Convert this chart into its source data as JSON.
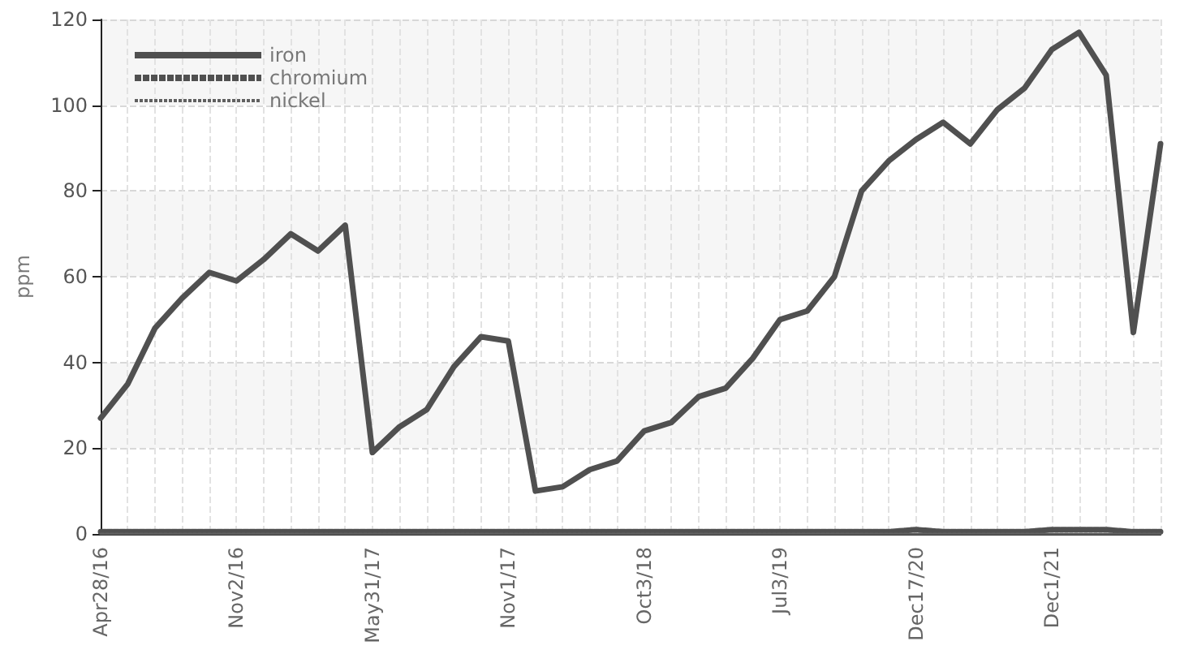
{
  "chart_data": {
    "type": "line",
    "ylabel": "ppm",
    "categories": [
      "Apr28/16",
      null,
      null,
      null,
      null,
      "Nov2/16",
      null,
      null,
      null,
      null,
      "May31/17",
      null,
      null,
      null,
      null,
      "Nov1/17",
      null,
      null,
      null,
      null,
      "Oct3/18",
      null,
      null,
      null,
      null,
      "Jul3/19",
      null,
      null,
      null,
      null,
      "Dec17/20",
      null,
      null,
      null,
      null,
      "Dec1/21",
      null,
      null,
      null,
      null
    ],
    "series": [
      {
        "name": "iron",
        "color": "#505050",
        "line_style": "solid",
        "values": [
          27,
          35,
          48,
          55,
          61,
          59,
          64,
          70,
          66,
          72,
          19,
          25,
          29,
          39,
          46,
          45,
          10,
          11,
          15,
          17,
          24,
          26,
          32,
          34,
          41,
          50,
          52,
          60,
          80,
          87,
          92,
          96,
          91,
          99,
          104,
          113,
          117,
          107,
          47,
          91
        ]
      },
      {
        "name": "chromium",
        "color": "#505050",
        "line_style": "dashed",
        "values": [
          0.5,
          0.5,
          0.5,
          0.5,
          0.5,
          0.5,
          0.5,
          0.5,
          0.5,
          0.5,
          0.5,
          0.5,
          0.5,
          0.5,
          0.5,
          0.5,
          0.5,
          0.5,
          0.5,
          0.5,
          0.5,
          0.5,
          0.5,
          0.5,
          0.5,
          0.5,
          0.5,
          0.5,
          0.5,
          0.5,
          1,
          0.5,
          0.5,
          0.5,
          0.5,
          1,
          1,
          1,
          0.5,
          0.5
        ]
      },
      {
        "name": "nickel",
        "color": "#606060",
        "line_style": "dotted",
        "values": [
          0,
          0,
          0,
          0,
          0,
          0,
          0,
          0,
          0,
          0,
          0,
          0,
          0,
          0,
          0,
          0,
          0,
          0,
          0,
          0,
          0,
          0,
          0,
          0,
          0,
          0,
          0,
          0,
          0,
          0,
          0,
          0,
          0,
          0,
          0,
          0,
          0,
          0,
          0,
          0
        ]
      }
    ],
    "ylim": [
      0,
      120
    ],
    "yticks": [
      0,
      20,
      40,
      60,
      80,
      100,
      120
    ],
    "grid": true,
    "legend": "top left",
    "marker": "none"
  }
}
